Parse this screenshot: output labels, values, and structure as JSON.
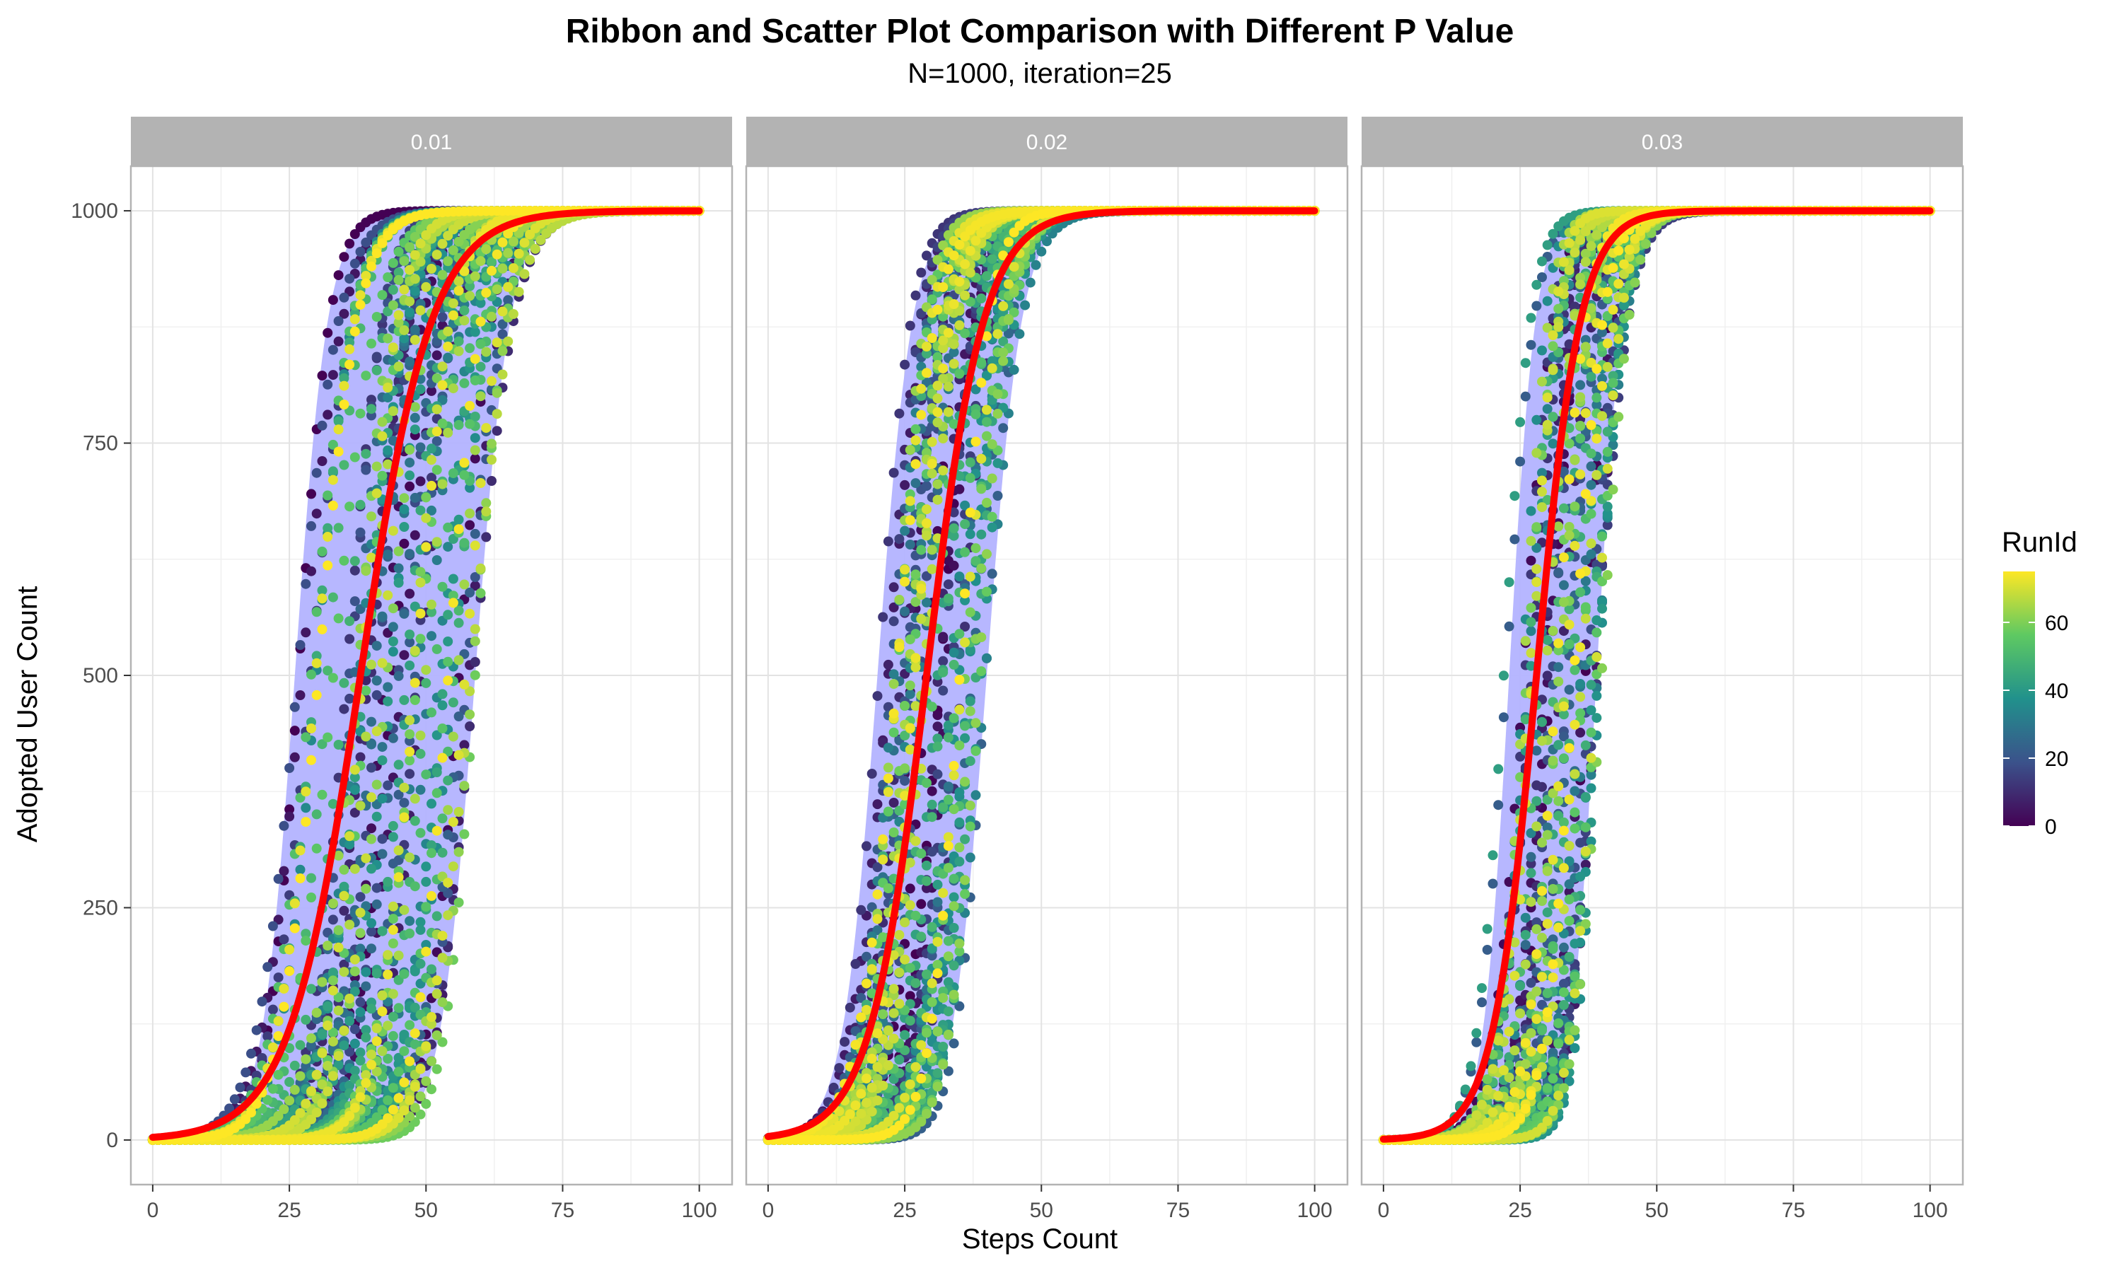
{
  "chart_data": {
    "type": "scatter",
    "title": "Ribbon and Scatter Plot Comparison with Different P Value",
    "subtitle": "N=1000, iteration=25",
    "xlabel": "Steps Count",
    "ylabel": "Adopted User Count",
    "xlim": [
      -4,
      106
    ],
    "ylim": [
      -48,
      1048
    ],
    "x_ticks": [
      0,
      25,
      50,
      75,
      100
    ],
    "y_ticks": [
      0,
      250,
      500,
      750,
      1000
    ],
    "grid": true,
    "legend": {
      "title": "RunId",
      "placement": "right",
      "type": "continuous",
      "range": [
        0,
        75
      ],
      "ticks": [
        0,
        20,
        40,
        60
      ],
      "colormap": [
        "#440154",
        "#3b528b",
        "#21918c",
        "#5ec962",
        "#fde725"
      ]
    },
    "ribbon_color": "#b3b3ff",
    "mean_line_color": "#ff0000",
    "panels": [
      {
        "label": "0.01",
        "mean_midpoint": 38,
        "mean_scale": 6.5,
        "lower_midpoint": 26,
        "lower_scale": 3.0,
        "upper_midpoint": 59,
        "upper_scale": 3.2,
        "point_midpoint_range": [
          26,
          59
        ],
        "point_scale_range": [
          2.8,
          4.0
        ]
      },
      {
        "label": "0.02",
        "mean_midpoint": 29,
        "mean_scale": 5.2,
        "lower_midpoint": 20,
        "lower_scale": 3.2,
        "upper_midpoint": 40,
        "upper_scale": 3.2,
        "point_midpoint_range": [
          20,
          40
        ],
        "point_scale_range": [
          2.6,
          3.6
        ]
      },
      {
        "label": "0.03",
        "mean_midpoint": 28,
        "mean_scale": 4.0,
        "lower_midpoint": 23,
        "lower_scale": 2.4,
        "upper_midpoint": 39,
        "upper_scale": 2.4,
        "point_midpoint_range": [
          22,
          40
        ],
        "point_scale_range": [
          2.0,
          3.0
        ]
      }
    ],
    "point_color_range": [
      0,
      75
    ],
    "runs_per_panel": 76,
    "steps": [
      0,
      100
    ]
  }
}
